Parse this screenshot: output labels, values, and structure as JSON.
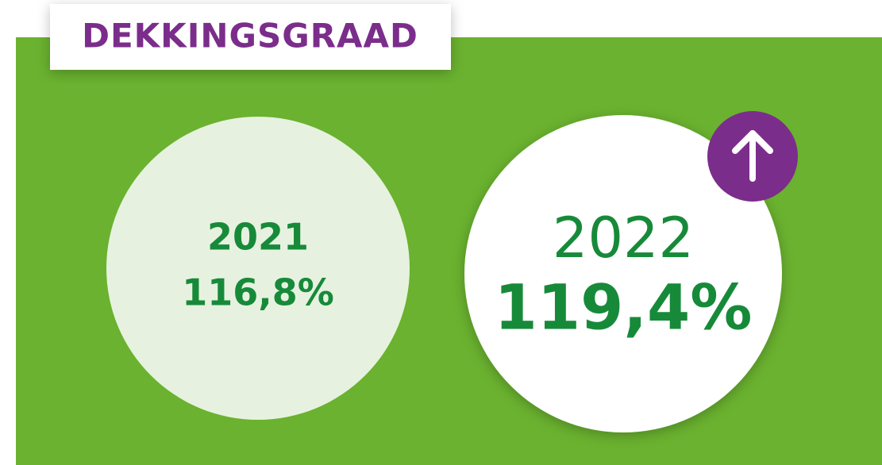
{
  "header": {
    "title": "DEKKINGSGRAAD"
  },
  "items": [
    {
      "year": "2021",
      "value": "116,8%"
    },
    {
      "year": "2022",
      "value": "119,4%"
    }
  ]
}
